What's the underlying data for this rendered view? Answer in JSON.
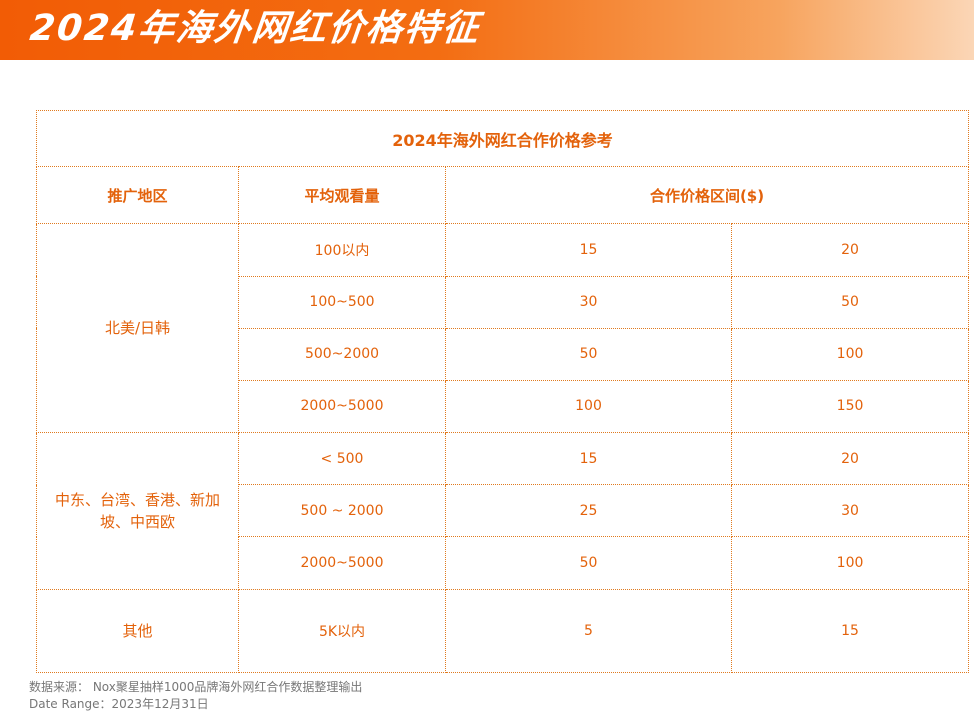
{
  "banner": {
    "title": "2024年海外网红价格特征"
  },
  "table": {
    "caption": "2024年海外网红合作价格参考",
    "headers": {
      "region": "推广地区",
      "views": "平均观看量",
      "price": "合作价格区间($)"
    },
    "groups": [
      {
        "region": "北美/日韩",
        "rows": [
          {
            "views": "100以内",
            "min": "15",
            "max": "20"
          },
          {
            "views": "100~500",
            "min": "30",
            "max": "50"
          },
          {
            "views": "500~2000",
            "min": "50",
            "max": "100"
          },
          {
            "views": "2000~5000",
            "min": "100",
            "max": "150"
          }
        ]
      },
      {
        "region": "中东、台湾、香港、新加坡、中西欧",
        "rows": [
          {
            "views": "< 500",
            "min": "15",
            "max": "20"
          },
          {
            "views": "500 ~ 2000",
            "min": "25",
            "max": "30"
          },
          {
            "views": "2000~5000",
            "min": "50",
            "max": "100"
          }
        ]
      },
      {
        "region": "其他",
        "rows": [
          {
            "views": "5K以内",
            "min": "5",
            "max": "15"
          }
        ]
      }
    ]
  },
  "footer": {
    "source": "数据来源： Nox聚星抽样1000品牌海外网红合作数据整理输出",
    "date_range": "Date Range：2023年12月31日"
  },
  "colors": {
    "accent": "#e3620b",
    "banner_start": "#f25c05",
    "banner_end": "#fbd6b6",
    "border": "#e07a1f",
    "footer_text": "#777777"
  }
}
